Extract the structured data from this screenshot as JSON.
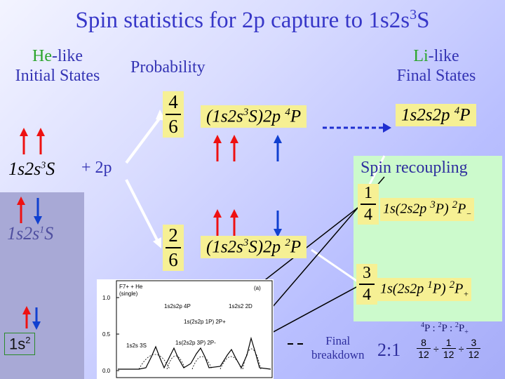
{
  "title": "Spin statistics for 2p capture to 1s2s",
  "title_sup": "3",
  "title_tail": "S",
  "initial": {
    "he": "He",
    "like": "-like",
    "line2": "Initial States"
  },
  "probability": "Probability",
  "final": {
    "li": "Li",
    "like": "-like",
    "line2": "Final States"
  },
  "state_triplet": "1s2s",
  "state_triplet_sup": "3",
  "state_triplet_tail": "S",
  "plus_2p": "+ 2p",
  "state_singlet": "1s2s",
  "state_singlet_sup": "1",
  "state_singlet_tail": "S",
  "state_ground": "1s",
  "state_ground_sup": "2",
  "frac_quartet": {
    "num": "4",
    "den": "6"
  },
  "frac_doublet": {
    "num": "2",
    "den": "6"
  },
  "term_quartet_mid": "(1s2s",
  "term_quartet_sup1": "3",
  "term_quartet_mid2": "S)2p",
  "term_quartet_sup2": "4",
  "term_quartet_tail": "P",
  "term_doublet_mid": "(1s2s",
  "term_doublet_sup1": "3",
  "term_doublet_mid2": "S)2p",
  "term_doublet_sup2": "2",
  "term_doublet_tail": "P",
  "term_final_q": "1s2s2p",
  "term_final_q_sup": "4",
  "term_final_q_tail": "P",
  "spin_recoupling": "Spin recoupling",
  "frac_minus": {
    "num": "1",
    "den": "4"
  },
  "frac_plus": {
    "num": "3",
    "den": "4"
  },
  "recouple_minus": {
    "a": "1s(2s2p",
    "s1": "3",
    "b": "P)",
    "s2": "2",
    "c": "P",
    "sub": "−"
  },
  "recouple_plus": {
    "a": "1s(2s2p",
    "s1": "1",
    "b": "P)",
    "s2": "2",
    "c": "P",
    "sub": "+"
  },
  "ratio_header": {
    "a": "4",
    "b": "P : ",
    "c": "2",
    "d": "P",
    "e": "  : ",
    "f": "2",
    "g": "P",
    "h": "+"
  },
  "final_breakdown": {
    "l1": "Final",
    "l2": "breakdown"
  },
  "ratio_value": "2:1",
  "ratio_fracs": {
    "f1": {
      "num": "8",
      "den": "12"
    },
    "f2": {
      "num": "1",
      "den": "12"
    },
    "f3": {
      "num": "3",
      "den": "12"
    },
    "sep": "÷"
  },
  "plot": {
    "ion": "F7+ + He",
    "mode": "(single)",
    "panel": "(a)",
    "yticks": [
      "1.0",
      "0.5",
      "0.0"
    ],
    "labels": [
      "1s2s2p 4P",
      "1s2s 3S",
      "1s(2s2p 1P) 2P+",
      "1s(2s2p 3P) 2P-",
      "1s2s2 2D"
    ]
  }
}
